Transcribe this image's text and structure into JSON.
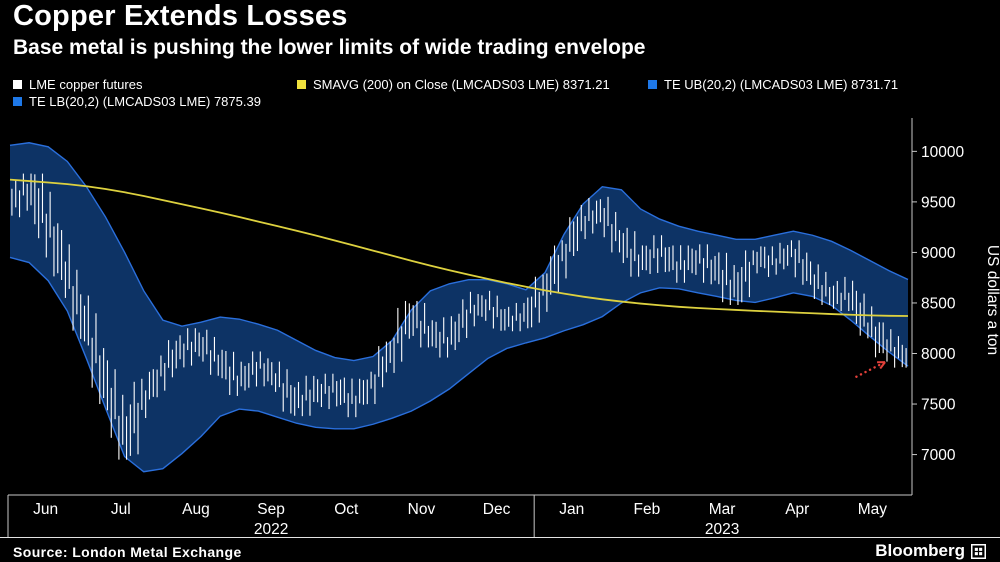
{
  "header": {
    "title": "Copper Extends Losses",
    "subtitle": "Base metal is pushing the lower limits of wide trading envelope"
  },
  "legend": {
    "items": [
      {
        "label": "LME copper futures",
        "color": "#ffffff"
      },
      {
        "label": "SMAVG (200)  on Close (LMCADS03 LME) 8371.21",
        "color": "#f0e13d"
      },
      {
        "label": "TE UB(20,2) (LMCADS03 LME) 8731.71",
        "color": "#1e78e8"
      },
      {
        "label": "TE LB(20,2) (LMCADS03 LME) 7875.39",
        "color": "#1e78e8"
      }
    ]
  },
  "footer": {
    "source": "Source: London Metal Exchange",
    "logo": "Bloomberg"
  },
  "chart_data": {
    "type": "line",
    "subtype": "daily-price-bars-with-trading-envelope-and-sma",
    "title": "Copper Extends Losses",
    "ylabel": "US dollars a ton",
    "ylim": [
      6600,
      10330
    ],
    "yticks": [
      7000,
      7500,
      8000,
      8500,
      9000,
      9500,
      10000
    ],
    "xticklabels": [
      "Jun",
      "Jul",
      "Aug",
      "Sep",
      "Oct",
      "Nov",
      "Dec",
      "Jan",
      "Feb",
      "Mar",
      "Apr",
      "May"
    ],
    "year_labels": [
      {
        "text": "2022",
        "center_month": 3.5
      },
      {
        "text": "2023",
        "center_month": 9.5
      }
    ],
    "year_separator_months": [
      0,
      7
    ],
    "grid": false,
    "legend_position": "top",
    "colors": {
      "band_fill": "#0d3365",
      "band_edge": "#2a6fdc",
      "axis": "#c8c8c8",
      "text": "#ffffff"
    },
    "series": [
      {
        "name": "LME copper futures",
        "role": "price",
        "color": "#ffffff",
        "high": [
          9680,
          9780,
          9600,
          9200,
          8700,
          8150,
          7600,
          7750,
          7980,
          8180,
          8250,
          8100,
          7950,
          8020,
          7920,
          7750,
          7780,
          7800,
          7700,
          7820,
          8120,
          8520,
          8480,
          8300,
          8550,
          8620,
          8500,
          8500,
          8780,
          9120,
          9470,
          9550,
          9380,
          9150,
          9170,
          9020,
          9080,
          9000,
          8900,
          9020,
          9060,
          9120,
          9050,
          8800,
          8720,
          8580,
          8320,
          8150
        ],
        "low": [
          9300,
          9430,
          8950,
          8550,
          8120,
          7500,
          6950,
          7080,
          7620,
          7820,
          7940,
          7780,
          7580,
          7700,
          7620,
          7380,
          7440,
          7500,
          7370,
          7500,
          7720,
          8060,
          8080,
          7960,
          8180,
          8340,
          8220,
          8240,
          8380,
          8620,
          9020,
          9250,
          9000,
          8760,
          8850,
          8700,
          8760,
          8680,
          8480,
          8560,
          8780,
          8850,
          8680,
          8480,
          8420,
          8150,
          7920,
          7860
        ],
        "close": [
          9480,
          9650,
          9280,
          8750,
          8250,
          7700,
          7150,
          7550,
          7850,
          8050,
          8100,
          7900,
          7720,
          7900,
          7730,
          7520,
          7620,
          7660,
          7520,
          7720,
          8050,
          8380,
          8180,
          8120,
          8420,
          8480,
          8320,
          8380,
          8650,
          9000,
          9320,
          9400,
          9080,
          8900,
          9020,
          8850,
          8950,
          8820,
          8620,
          8960,
          8900,
          9020,
          8730,
          8560,
          8560,
          8230,
          8060,
          7960
        ]
      },
      {
        "name": "SMAVG (200) on Close (LMCADS03 LME)",
        "role": "sma",
        "last_value": 8371.21,
        "color": "#ddd13f",
        "values": [
          9720,
          9706,
          9692,
          9676,
          9655,
          9628,
          9595,
          9558,
          9518,
          9477,
          9436,
          9394,
          9350,
          9305,
          9260,
          9214,
          9167,
          9118,
          9068,
          9018,
          8968,
          8918,
          8870,
          8824,
          8780,
          8738,
          8698,
          8660,
          8625,
          8592,
          8562,
          8536,
          8514,
          8494,
          8477,
          8462,
          8450,
          8440,
          8431,
          8422,
          8414,
          8406,
          8398,
          8390,
          8383,
          8377,
          8373,
          8371
        ]
      },
      {
        "name": "TE UB(20,2) (LMCADS03 LME)",
        "role": "upper-band",
        "last_value": 8731.71,
        "color": "#2a6fdc",
        "values": [
          10060,
          10085,
          10045,
          9900,
          9650,
          9350,
          9000,
          8620,
          8330,
          8270,
          8310,
          8360,
          8340,
          8290,
          8230,
          8130,
          8030,
          7960,
          7930,
          7970,
          8130,
          8430,
          8620,
          8690,
          8730,
          8730,
          8690,
          8630,
          8800,
          9180,
          9480,
          9650,
          9620,
          9430,
          9330,
          9260,
          9210,
          9170,
          9130,
          9130,
          9170,
          9210,
          9170,
          9110,
          9020,
          8920,
          8820,
          8732
        ]
      },
      {
        "name": "TE LB(20,2) (LMCADS03 LME)",
        "role": "lower-band",
        "last_value": 7875.39,
        "color": "#2a6fdc",
        "values": [
          8950,
          8900,
          8720,
          8420,
          7950,
          7460,
          6980,
          6830,
          6860,
          7010,
          7180,
          7380,
          7450,
          7430,
          7370,
          7310,
          7270,
          7255,
          7255,
          7300,
          7360,
          7430,
          7530,
          7650,
          7800,
          7950,
          8050,
          8105,
          8155,
          8225,
          8285,
          8365,
          8500,
          8600,
          8650,
          8640,
          8600,
          8565,
          8525,
          8505,
          8550,
          8600,
          8565,
          8475,
          8330,
          8170,
          8015,
          7875
        ]
      }
    ],
    "annotation": {
      "type": "dotted-arrow",
      "color": "#e3403a",
      "from_week": 44.3,
      "from_value": 7770,
      "to_week": 45.8,
      "to_value": 7915
    }
  }
}
